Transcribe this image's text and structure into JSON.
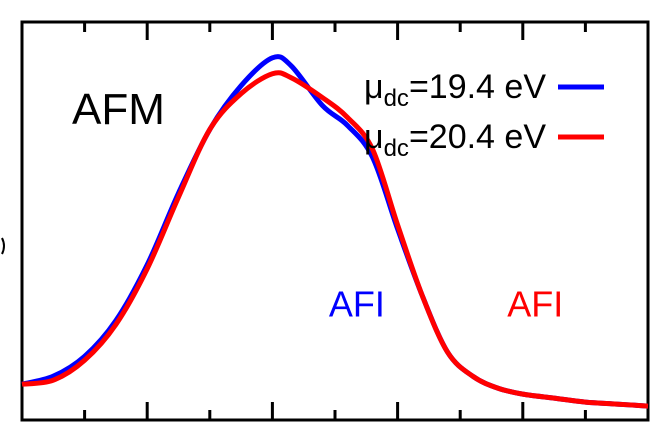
{
  "chart_data": {
    "type": "line",
    "panel_label": "AFM",
    "xlim": [
      0,
      10
    ],
    "ylim": [
      0,
      1
    ],
    "grid": false,
    "legend_placement": "top-right",
    "series": [
      {
        "name_base": "μ",
        "name_sub": "dc",
        "name_rest": "=19.4 eV",
        "color": "#0000ff",
        "x": [
          0,
          0.5,
          1.0,
          1.5,
          2.0,
          2.5,
          3.0,
          3.5,
          4.0,
          4.3,
          4.8,
          5.2,
          5.6,
          6.0,
          6.4,
          6.8,
          7.2,
          7.6,
          8.0,
          8.5,
          9.0,
          9.5,
          10.0
        ],
        "y": [
          0.09,
          0.11,
          0.16,
          0.25,
          0.39,
          0.57,
          0.73,
          0.84,
          0.91,
          0.89,
          0.79,
          0.74,
          0.66,
          0.48,
          0.31,
          0.17,
          0.11,
          0.08,
          0.065,
          0.055,
          0.045,
          0.04,
          0.035
        ]
      },
      {
        "name_base": "μ",
        "name_sub": "dc",
        "name_rest": "=20.4 eV",
        "color": "#ff0000",
        "x": [
          0,
          0.5,
          1.0,
          1.5,
          2.0,
          2.5,
          3.0,
          3.5,
          4.0,
          4.3,
          4.8,
          5.2,
          5.6,
          6.0,
          6.4,
          6.8,
          7.2,
          7.6,
          8.0,
          8.5,
          9.0,
          9.5,
          10.0
        ],
        "y": [
          0.09,
          0.1,
          0.15,
          0.24,
          0.38,
          0.56,
          0.73,
          0.82,
          0.87,
          0.86,
          0.81,
          0.76,
          0.68,
          0.49,
          0.31,
          0.17,
          0.11,
          0.08,
          0.065,
          0.055,
          0.045,
          0.04,
          0.035
        ]
      }
    ],
    "annotations": [
      {
        "text": "AFI",
        "color": "#0000ff",
        "x": 5.35,
        "y": 0.26
      },
      {
        "text": "AFI",
        "color": "#ff0000",
        "x": 8.2,
        "y": 0.26
      }
    ],
    "x_ticks": [
      1,
      2,
      3,
      4,
      5,
      6,
      7,
      8,
      9
    ]
  }
}
